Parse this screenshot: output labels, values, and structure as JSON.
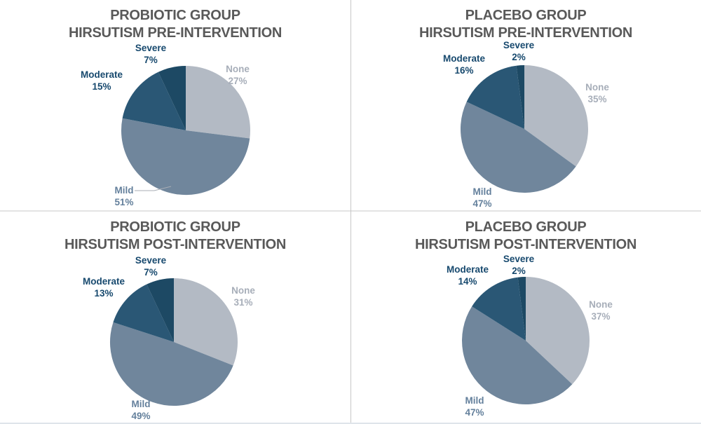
{
  "page": {
    "background": "#ffffff",
    "divider_vertical_color": "#c6c6c6",
    "divider_horizontal_color": "#e3e3e3",
    "bottom_edge_color": "#dfe4ea"
  },
  "palette": {
    "slice_none": "#b3bac4",
    "slice_mild": "#70869c",
    "slice_moderate": "#2a5775",
    "slice_severe": "#1d4964",
    "title_text": "#595959",
    "navy_label_text": "#17496e",
    "gray_label_text": "#a7aeb9",
    "mild_label_text": "#64809c",
    "leader_line": "#a8adb5"
  },
  "chart_data": [
    {
      "type": "pie",
      "title_line1": "PROBIOTIC GROUP",
      "title_line2": "HIRSUTISM PRE-INTERVENTION",
      "direction": "clockwise",
      "start_angle_deg": 0,
      "pie_center": [
        265,
        186
      ],
      "pie_radius": 92,
      "slices": [
        {
          "label": "None",
          "value": 27,
          "pct_label": "27%",
          "color": "#b3bac4",
          "label_color": "#a7aeb9",
          "label_pos": [
            339,
            90
          ]
        },
        {
          "label": "Mild",
          "value": 51,
          "pct_label": "51%",
          "color": "#70869c",
          "label_color": "#64809c",
          "label_pos": [
            177,
            263
          ],
          "leader_points": [
            [
              192,
              272
            ],
            [
              220,
              272
            ],
            [
              244,
              266
            ]
          ]
        },
        {
          "label": "Moderate",
          "value": 15,
          "pct_label": "15%",
          "color": "#2a5775",
          "label_color": "#17496e",
          "label_pos": [
            145,
            98
          ]
        },
        {
          "label": "Severe",
          "value": 7,
          "pct_label": "7%",
          "color": "#1d4964",
          "label_color": "#17496e",
          "label_pos": [
            215,
            60
          ]
        }
      ]
    },
    {
      "type": "pie",
      "title_line1": "PLACEBO GROUP",
      "title_line2": "HIRSUTISM PRE-INTERVENTION",
      "direction": "clockwise",
      "start_angle_deg": 0,
      "pie_center": [
        248,
        184
      ],
      "pie_radius": 91,
      "slices": [
        {
          "label": "None",
          "value": 35,
          "pct_label": "35%",
          "color": "#b3bac4",
          "label_color": "#a7aeb9",
          "label_pos": [
            352,
            116
          ]
        },
        {
          "label": "Mild",
          "value": 47,
          "pct_label": "47%",
          "color": "#70869c",
          "label_color": "#64809c",
          "label_pos": [
            188,
            265
          ]
        },
        {
          "label": "Moderate",
          "value": 16,
          "pct_label": "16%",
          "color": "#2a5775",
          "label_color": "#17496e",
          "label_pos": [
            162,
            75
          ]
        },
        {
          "label": "Severe",
          "value": 2,
          "pct_label": "2%",
          "color": "#1d4964",
          "label_color": "#17496e",
          "label_pos": [
            240,
            56
          ]
        }
      ]
    },
    {
      "type": "pie",
      "title_line1": "PROBIOTIC GROUP",
      "title_line2": "HIRSUTISM POST-INTERVENTION",
      "direction": "clockwise",
      "start_angle_deg": 0,
      "pie_center": [
        248,
        186
      ],
      "pie_radius": 91,
      "slices": [
        {
          "label": "None",
          "value": 31,
          "pct_label": "31%",
          "color": "#b3bac4",
          "label_color": "#a7aeb9",
          "label_pos": [
            347,
            104
          ]
        },
        {
          "label": "Mild",
          "value": 49,
          "pct_label": "49%",
          "color": "#70869c",
          "label_color": "#64809c",
          "label_pos": [
            201,
            266
          ]
        },
        {
          "label": "Moderate",
          "value": 13,
          "pct_label": "13%",
          "color": "#2a5775",
          "label_color": "#17496e",
          "label_pos": [
            148,
            91
          ]
        },
        {
          "label": "Severe",
          "value": 7,
          "pct_label": "7%",
          "color": "#1d4964",
          "label_color": "#17496e",
          "label_pos": [
            215,
            61
          ]
        }
      ]
    },
    {
      "type": "pie",
      "title_line1": "PLACEBO GROUP",
      "title_line2": "HIRSUTISM POST-INTERVENTION",
      "direction": "clockwise",
      "start_angle_deg": 0,
      "pie_center": [
        250,
        184
      ],
      "pie_radius": 91,
      "slices": [
        {
          "label": "None",
          "value": 37,
          "pct_label": "37%",
          "color": "#b3bac4",
          "label_color": "#a7aeb9",
          "label_pos": [
            357,
            124
          ]
        },
        {
          "label": "Mild",
          "value": 47,
          "pct_label": "47%",
          "color": "#70869c",
          "label_color": "#64809c",
          "label_pos": [
            177,
            261
          ]
        },
        {
          "label": "Moderate",
          "value": 14,
          "pct_label": "14%",
          "color": "#2a5775",
          "label_color": "#17496e",
          "label_pos": [
            167,
            74
          ]
        },
        {
          "label": "Severe",
          "value": 2,
          "pct_label": "2%",
          "color": "#1d4964",
          "label_color": "#17496e",
          "label_pos": [
            240,
            59
          ]
        }
      ]
    }
  ]
}
